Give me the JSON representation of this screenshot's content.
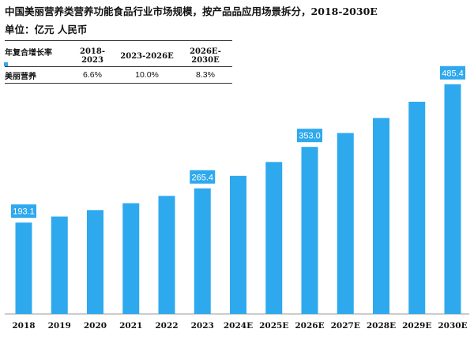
{
  "title": "中国美丽营养类营养功能食品行业市场规模，按产品品应用场景拆分，2018-2030E",
  "unit": "单位：亿元 人民币",
  "cagr_table": {
    "header": [
      "年复合增长率",
      "2018-2023",
      "2023-2026E",
      "2026E-2030E"
    ],
    "rows": [
      {
        "label": "美丽营养",
        "values": [
          "6.6%",
          "10.0%",
          "8.3%"
        ]
      }
    ]
  },
  "colors": {
    "bar": "#2fa9ee",
    "label_bg": "#2fa9ee",
    "label_text": "#ffffff"
  },
  "chart_data": {
    "type": "bar",
    "title": "中国美丽营养类营养功能食品行业市场规模，按产品品应用场景拆分，2018-2030E",
    "xlabel": "",
    "ylabel": "",
    "categories": [
      "2018",
      "2019",
      "2020",
      "2021",
      "2022",
      "2023",
      "2024E",
      "2025E",
      "2026E",
      "2027E",
      "2028E",
      "2029E",
      "2030E"
    ],
    "values": [
      193.1,
      205.8,
      219.5,
      234.0,
      249.5,
      265.4,
      291.9,
      321.1,
      353.0,
      382.3,
      414.0,
      448.4,
      485.4
    ],
    "data_labels": [
      "193.1",
      "",
      "",
      "",
      "",
      "265.4",
      "",
      "",
      "353.0",
      "",
      "",
      "",
      "485.4"
    ],
    "ylim": [
      0,
      500
    ],
    "grid": false,
    "legend": "none"
  }
}
